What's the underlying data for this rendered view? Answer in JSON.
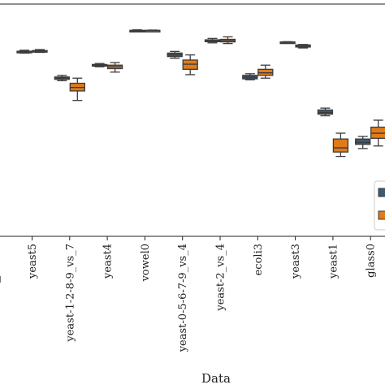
{
  "chart_data": {
    "type": "box",
    "title": "",
    "xlabel": "Data",
    "ylabel": "",
    "grid": false,
    "legend_position": "right (clipped at image edge)",
    "categories": [
      "yeast5",
      "yeast-1-2-8-9_vs_7",
      "yeast4",
      "vowel0",
      "yeast-0-5-6-7-9_vs_4",
      "yeast-2_vs_4",
      "ecoli3",
      "yeast3",
      "yeast1",
      "glass0"
    ],
    "y_range_note": "y-axis ticks are cropped out of the screenshot; values below are relative units (0 = plot bottom, 1 = plot top)",
    "ylim": [
      0,
      1
    ],
    "series": [
      {
        "color": "#3d5a73",
        "boxes": [
          {
            "category": "yeast5",
            "min": 0.789,
            "q1": 0.793,
            "median": 0.795,
            "q3": 0.797,
            "max": 0.801
          },
          {
            "category": "yeast-1-2-8-9_vs_7",
            "min": 0.67,
            "q1": 0.676,
            "median": 0.681,
            "q3": 0.686,
            "max": 0.693
          },
          {
            "category": "yeast4",
            "min": 0.73,
            "q1": 0.733,
            "median": 0.736,
            "q3": 0.74,
            "max": 0.744
          },
          {
            "category": "vowel0",
            "min": 0.881,
            "q1": 0.883,
            "median": 0.885,
            "q3": 0.887,
            "max": 0.889
          },
          {
            "category": "yeast-0-5-6-7-9_vs_4",
            "min": 0.767,
            "q1": 0.774,
            "median": 0.781,
            "q3": 0.789,
            "max": 0.796
          },
          {
            "category": "yeast-2_vs_4",
            "min": 0.833,
            "q1": 0.838,
            "median": 0.841,
            "q3": 0.846,
            "max": 0.852
          },
          {
            "category": "ecoli3",
            "min": 0.674,
            "q1": 0.678,
            "median": 0.685,
            "q3": 0.693,
            "max": 0.7
          },
          {
            "category": "yeast3",
            "min": 0.833,
            "q1": 0.834,
            "median": 0.836,
            "q3": 0.837,
            "max": 0.838
          },
          {
            "category": "yeast1",
            "min": 0.519,
            "q1": 0.526,
            "median": 0.533,
            "q3": 0.544,
            "max": 0.552
          },
          {
            "category": "glass0",
            "min": 0.378,
            "q1": 0.396,
            "median": 0.404,
            "q3": 0.419,
            "max": 0.43
          }
        ]
      },
      {
        "color": "#e07b1a",
        "boxes": [
          {
            "category": "yeast5",
            "min": 0.792,
            "q1": 0.796,
            "median": 0.798,
            "q3": 0.8,
            "max": 0.804
          },
          {
            "category": "yeast-1-2-8-9_vs_7",
            "min": 0.585,
            "q1": 0.626,
            "median": 0.641,
            "q3": 0.659,
            "max": 0.681
          },
          {
            "category": "yeast4",
            "min": 0.707,
            "q1": 0.722,
            "median": 0.73,
            "q3": 0.737,
            "max": 0.748
          },
          {
            "category": "vowel0",
            "min": 0.884,
            "q1": 0.885,
            "median": 0.886,
            "q3": 0.887,
            "max": 0.888
          },
          {
            "category": "yeast-0-5-6-7-9_vs_4",
            "min": 0.696,
            "q1": 0.719,
            "median": 0.741,
            "q3": 0.759,
            "max": 0.781
          },
          {
            "category": "yeast-2_vs_4",
            "min": 0.83,
            "q1": 0.837,
            "median": 0.843,
            "q3": 0.848,
            "max": 0.859
          },
          {
            "category": "ecoli3",
            "min": 0.681,
            "q1": 0.693,
            "median": 0.704,
            "q3": 0.719,
            "max": 0.737
          },
          {
            "category": "yeast3",
            "min": 0.811,
            "q1": 0.815,
            "median": 0.819,
            "q3": 0.824,
            "max": 0.826
          },
          {
            "category": "yeast1",
            "min": 0.344,
            "q1": 0.363,
            "median": 0.381,
            "q3": 0.419,
            "max": 0.444
          },
          {
            "category": "glass0",
            "min": 0.389,
            "q1": 0.422,
            "median": 0.444,
            "q3": 0.47,
            "max": 0.5
          }
        ]
      }
    ]
  }
}
